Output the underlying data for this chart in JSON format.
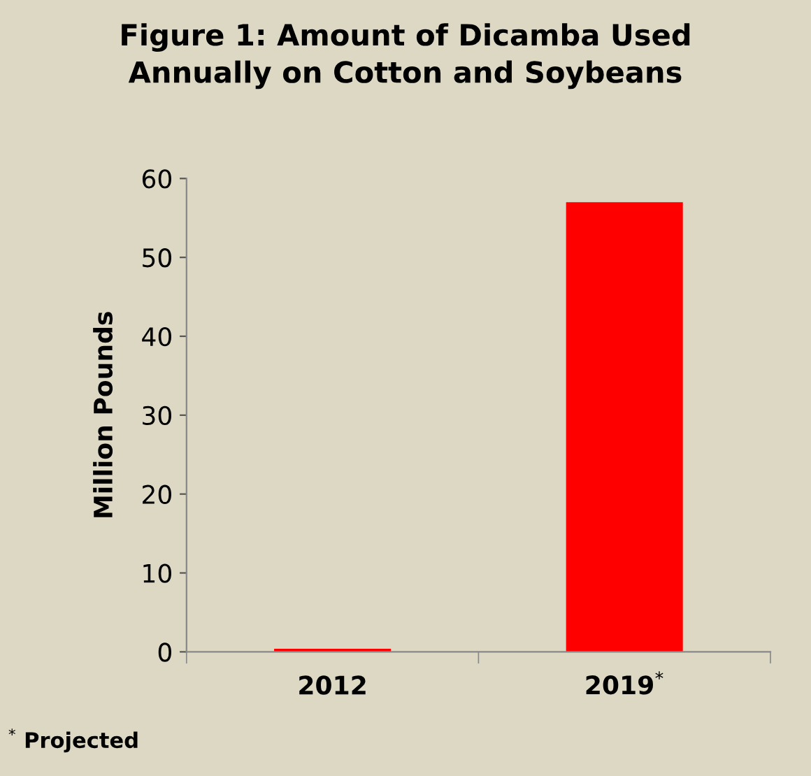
{
  "chart_data": {
    "type": "bar",
    "title": "Figure 1: Amount of Dicamba Used\nAnnually on Cotton and Soybeans",
    "categories": [
      "2012",
      "2019$^{*}$"
    ],
    "series": [
      {
        "color": "#ff0000",
        "values": [
          0.4,
          57
        ]
      }
    ],
    "ylabel": "Million Pounds",
    "ylim": [
      0,
      60
    ],
    "yticks": [
      0,
      10,
      20,
      30,
      40,
      50,
      60
    ],
    "grid": false,
    "legend": false,
    "annotations": [
      "$^{*}$ Projected"
    ]
  }
}
